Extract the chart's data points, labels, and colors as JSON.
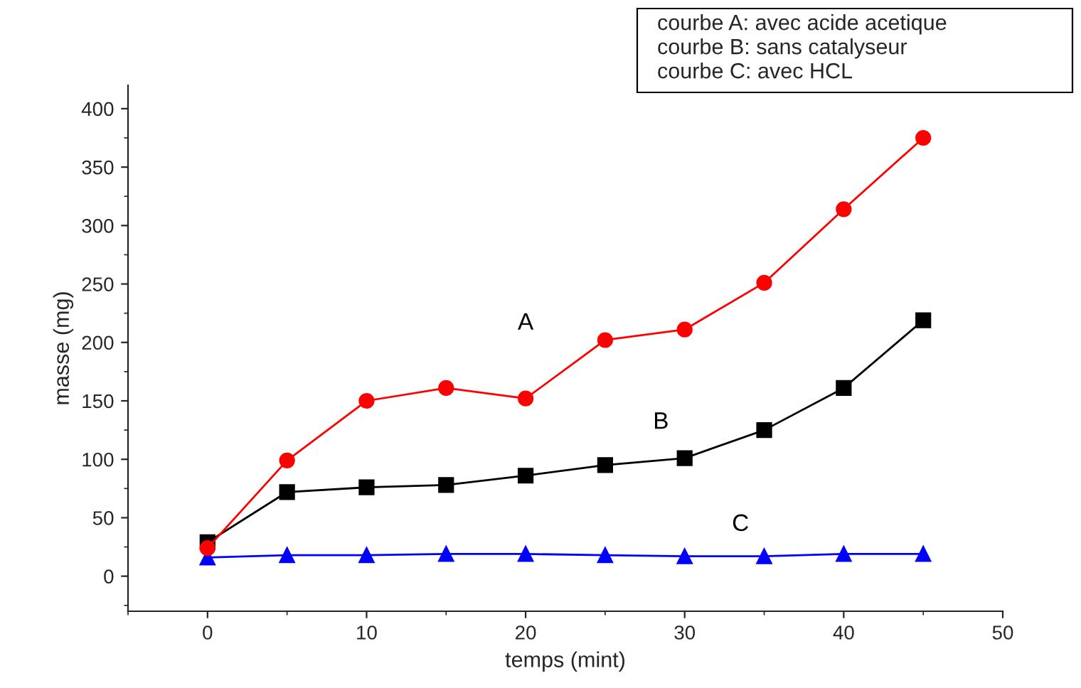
{
  "chart_data": {
    "type": "line",
    "xlabel": "temps (mint)",
    "ylabel": "masse (mg)",
    "x": [
      0,
      5,
      10,
      15,
      20,
      25,
      30,
      35,
      40,
      45
    ],
    "series": [
      {
        "name": "A",
        "color": "#ff0000",
        "marker": "circle",
        "values": [
          24,
          99,
          150,
          161,
          152,
          202,
          211,
          251,
          314,
          375
        ]
      },
      {
        "name": "B",
        "color": "#000000",
        "marker": "square",
        "values": [
          29,
          72,
          76,
          78,
          86,
          95,
          101,
          125,
          161,
          219
        ]
      },
      {
        "name": "C",
        "color": "#0000ff",
        "marker": "triangle",
        "values": [
          16,
          18,
          18,
          19,
          19,
          18,
          17,
          17,
          19,
          19
        ]
      }
    ],
    "annotations": [
      "courbe A: avec acide acetique",
      "courbe B: sans catalyseur",
      "courbe C: avec HCL"
    ],
    "xlim": [
      -5,
      50
    ],
    "xticks": [
      0,
      10,
      20,
      30,
      40,
      50
    ],
    "ylim": [
      -30,
      420
    ],
    "yticks": [
      0,
      50,
      100,
      150,
      200,
      250,
      300,
      350,
      400
    ],
    "grid": false
  }
}
